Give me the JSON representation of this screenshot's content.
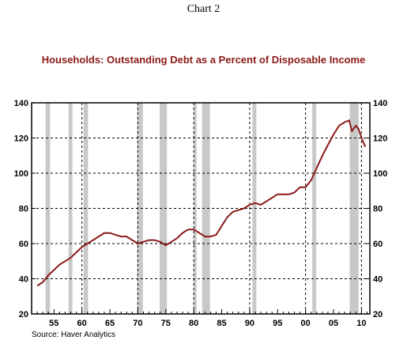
{
  "header": {
    "chart_number": "Chart 2"
  },
  "source": "Source: Haver Analytics",
  "chart_data": {
    "type": "line",
    "title": "Households: Outstanding Debt as a Percent of Disposable Income",
    "xlabel": "",
    "ylabel": "",
    "xlim": [
      1951,
      2011.5
    ],
    "ylim": [
      20,
      140
    ],
    "x_ticks": [
      1955,
      1960,
      1965,
      1970,
      1975,
      1980,
      1985,
      1990,
      1995,
      2000,
      2005,
      2010
    ],
    "x_tick_labels": [
      "55",
      "60",
      "65",
      "70",
      "75",
      "80",
      "85",
      "90",
      "95",
      "00",
      "05",
      "10"
    ],
    "y_ticks": [
      20,
      40,
      60,
      80,
      100,
      120,
      140
    ],
    "y_tick_labels": [
      "20",
      "40",
      "60",
      "80",
      "100",
      "120",
      "140"
    ],
    "grid": "dashed vertical at 1960, 1970, 1980, 1990, 2000, 2010; dashed horizontal at each y tick",
    "line_color": "#8b1a1a",
    "recession_color": "#c8c8c8",
    "recessions": [
      [
        1953.5,
        1954.3
      ],
      [
        1957.6,
        1958.3
      ],
      [
        1960.3,
        1961.1
      ],
      [
        1969.9,
        1970.9
      ],
      [
        1973.9,
        1975.2
      ],
      [
        1980.0,
        1980.5
      ],
      [
        1981.5,
        1982.9
      ],
      [
        1990.5,
        1991.2
      ],
      [
        2001.2,
        2001.9
      ],
      [
        2007.9,
        2009.5
      ]
    ],
    "series": [
      {
        "x": [
          1952.0,
          1953.0,
          1954.0,
          1955.0,
          1956.0,
          1957.0,
          1958.0,
          1959.0,
          1960.0,
          1961.0,
          1962.0,
          1963.0,
          1964.0,
          1965.0,
          1966.0,
          1967.0,
          1968.0,
          1969.0,
          1970.0,
          1971.0,
          1972.0,
          1973.0,
          1974.0,
          1975.0,
          1976.0,
          1977.0,
          1978.0,
          1979.0,
          1980.0,
          1981.0,
          1982.0,
          1983.0,
          1984.0,
          1985.0,
          1986.0,
          1987.0,
          1988.0,
          1989.0,
          1990.0,
          1991.0,
          1992.0,
          1993.0,
          1994.0,
          1995.0,
          1996.0,
          1997.0,
          1998.0,
          1999.0,
          2000.0,
          2001.0,
          2002.0,
          2003.0,
          2004.0,
          2005.0,
          2006.0,
          2007.0,
          2007.8,
          2008.3,
          2009.0,
          2009.5,
          2010.0,
          2010.7
        ],
        "values": [
          36,
          38,
          42,
          45,
          48,
          50,
          52,
          55,
          58,
          60,
          62,
          64,
          66,
          66,
          65,
          64,
          64,
          62,
          60,
          61,
          62,
          62,
          61,
          59,
          61,
          63,
          66,
          68,
          68,
          66,
          64,
          64,
          65,
          70,
          75,
          78,
          79,
          80,
          82,
          83,
          82,
          84,
          86,
          88,
          88,
          88,
          89,
          92,
          92,
          96,
          103,
          110,
          116,
          122,
          127,
          129,
          130,
          124,
          127,
          125,
          120,
          115
        ]
      }
    ]
  }
}
